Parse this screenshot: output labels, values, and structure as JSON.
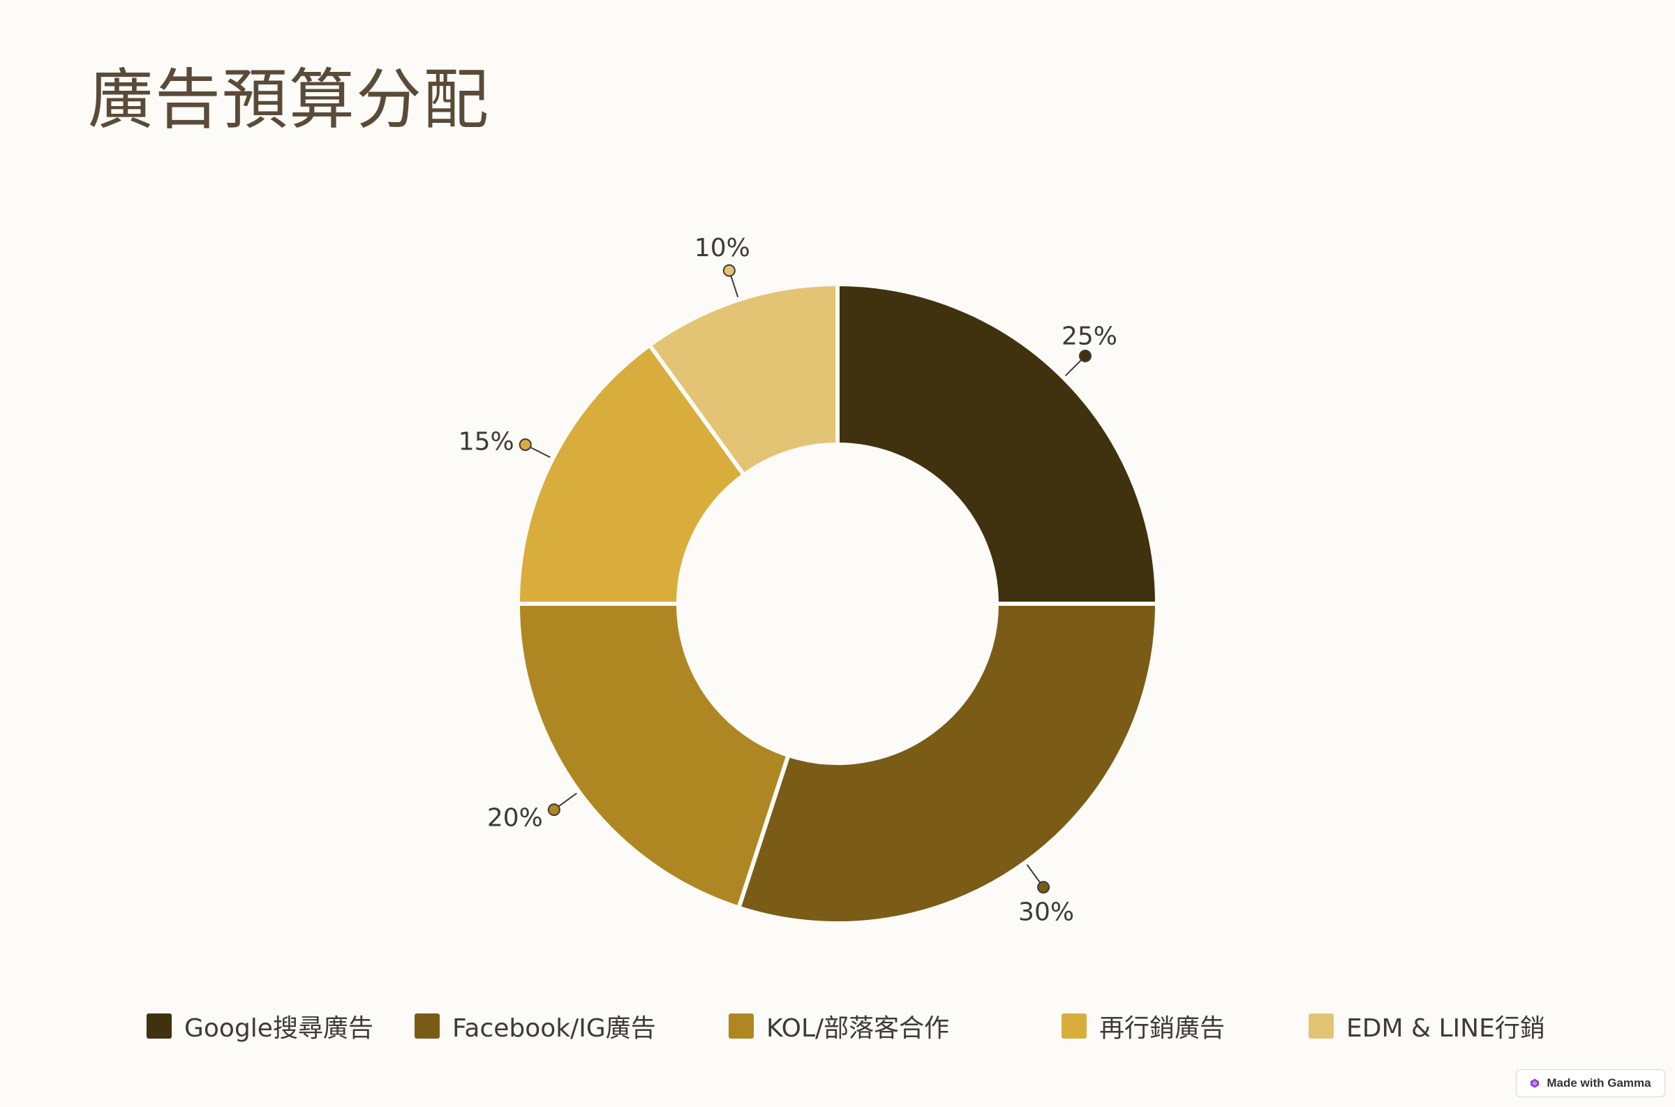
{
  "title": "廣告預算分配",
  "chart_data": {
    "type": "pie",
    "donut": true,
    "categories": [
      "Google搜尋廣告",
      "Facebook/IG廣告",
      "KOL/部落客合作",
      "再行銷廣告",
      "EDM & LINE行銷"
    ],
    "values": [
      25,
      30,
      20,
      15,
      10
    ],
    "labels": [
      "25%",
      "30%",
      "20%",
      "15%",
      "10%"
    ],
    "colors": [
      "#40320E",
      "#7A5C17",
      "#AF8722",
      "#D8AD3B",
      "#E3C474"
    ],
    "legend_position": "bottom"
  },
  "legend": {
    "items": [
      {
        "label": "Google搜尋廣告",
        "color": "#40320E"
      },
      {
        "label": "Facebook/IG廣告",
        "color": "#7A5C17"
      },
      {
        "label": "KOL/部落客合作",
        "color": "#AF8722"
      },
      {
        "label": "再行銷廣告",
        "color": "#D8AD3B"
      },
      {
        "label": "EDM & LINE行銷",
        "color": "#E3C474"
      }
    ]
  },
  "badge": {
    "text": "Made with Gamma"
  }
}
